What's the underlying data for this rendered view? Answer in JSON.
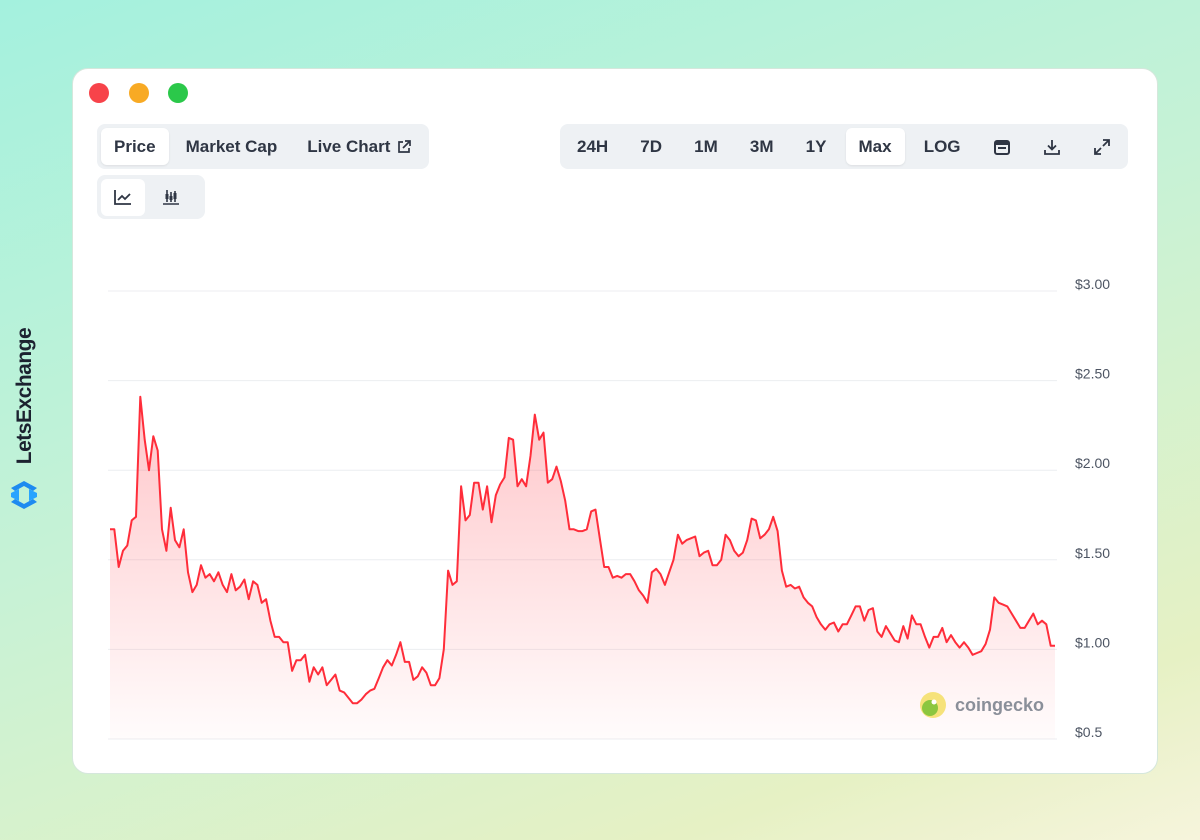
{
  "brand": "LetsExchange",
  "tabs": [
    "Price",
    "Market Cap",
    "Live Chart"
  ],
  "ranges": [
    "24H",
    "7D",
    "1M",
    "3M",
    "1Y",
    "Max",
    "LOG"
  ],
  "watermark": "coingecko",
  "chart_data": {
    "type": "area",
    "color": "#ff2d3a",
    "values": [
      1.67,
      1.67,
      1.46,
      1.55,
      1.58,
      1.72,
      1.74,
      2.41,
      2.17,
      2.0,
      2.19,
      2.11,
      1.67,
      1.55,
      1.79,
      1.61,
      1.57,
      1.67,
      1.43,
      1.32,
      1.36,
      1.47,
      1.4,
      1.42,
      1.38,
      1.43,
      1.36,
      1.32,
      1.42,
      1.33,
      1.35,
      1.39,
      1.28,
      1.38,
      1.36,
      1.26,
      1.28,
      1.16,
      1.07,
      1.07,
      1.04,
      1.04,
      0.88,
      0.94,
      0.94,
      0.97,
      0.82,
      0.9,
      0.86,
      0.9,
      0.8,
      0.83,
      0.86,
      0.77,
      0.76,
      0.73,
      0.7,
      0.7,
      0.72,
      0.75,
      0.77,
      0.78,
      0.84,
      0.9,
      0.94,
      0.91,
      0.97,
      1.04,
      0.93,
      0.93,
      0.83,
      0.85,
      0.9,
      0.87,
      0.8,
      0.8,
      0.84,
      1.0,
      1.44,
      1.36,
      1.38,
      1.91,
      1.72,
      1.75,
      1.93,
      1.93,
      1.78,
      1.91,
      1.71,
      1.86,
      1.92,
      1.96,
      2.18,
      2.17,
      1.91,
      1.95,
      1.91,
      2.08,
      2.31,
      2.17,
      2.21,
      1.93,
      1.95,
      2.02,
      1.94,
      1.83,
      1.67,
      1.67,
      1.66,
      1.66,
      1.67,
      1.77,
      1.78,
      1.62,
      1.46,
      1.46,
      1.4,
      1.41,
      1.4,
      1.42,
      1.42,
      1.38,
      1.33,
      1.3,
      1.26,
      1.43,
      1.45,
      1.42,
      1.36,
      1.43,
      1.5,
      1.64,
      1.59,
      1.61,
      1.62,
      1.63,
      1.52,
      1.54,
      1.55,
      1.47,
      1.47,
      1.5,
      1.64,
      1.61,
      1.55,
      1.52,
      1.54,
      1.61,
      1.73,
      1.72,
      1.62,
      1.64,
      1.67,
      1.74,
      1.66,
      1.44,
      1.35,
      1.36,
      1.34,
      1.35,
      1.29,
      1.26,
      1.24,
      1.18,
      1.14,
      1.11,
      1.14,
      1.15,
      1.1,
      1.14,
      1.14,
      1.19,
      1.24,
      1.24,
      1.16,
      1.22,
      1.23,
      1.1,
      1.07,
      1.13,
      1.09,
      1.05,
      1.04,
      1.13,
      1.06,
      1.19,
      1.14,
      1.14,
      1.07,
      1.01,
      1.07,
      1.07,
      1.12,
      1.04,
      1.08,
      1.04,
      1.01,
      1.04,
      1.01,
      0.97,
      0.98,
      0.99,
      1.03,
      1.11,
      1.29,
      1.26,
      1.25,
      1.24,
      1.2,
      1.16,
      1.12,
      1.12,
      1.16,
      1.2,
      1.14,
      1.16,
      1.14,
      1.02,
      1.02
    ],
    "ylim": [
      0.5,
      3.0
    ],
    "yticks": [
      {
        "value": 0.5,
        "label": "$0.5"
      },
      {
        "value": 1.0,
        "label": "$1.00"
      },
      {
        "value": 1.5,
        "label": "$1.50"
      },
      {
        "value": 2.0,
        "label": "$2.00"
      },
      {
        "value": 2.5,
        "label": "$2.50"
      },
      {
        "value": 3.0,
        "label": "$3.00"
      }
    ],
    "grid": true
  }
}
